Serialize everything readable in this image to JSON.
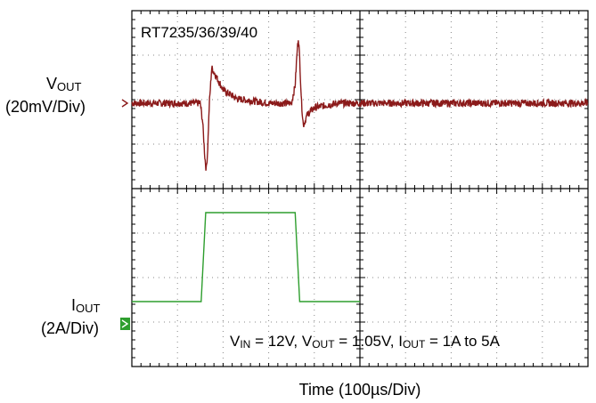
{
  "chart_data": {
    "type": "line",
    "title": "RT7235/36/39/40",
    "xlabel": "Time (100µs/Div)",
    "x_div_us": 100,
    "x_divisions": 10,
    "y_divisions": 8,
    "grid": true,
    "annotation": {
      "prefix": "V",
      "vin_sub": "IN",
      "vin_val": " = 12V, ",
      "vout_prefix": "V",
      "vout_sub": "OUT",
      "vout_val": " = 1.05V, ",
      "iout_prefix": "I",
      "iout_sub": "OUT",
      "iout_val": " = 1A to 5A"
    },
    "series": [
      {
        "name": "VOUT",
        "label_main": "V",
        "label_sub": "OUT",
        "scale_label": "(20mV/Div)",
        "color": "#8b1a1a",
        "unit": "mV",
        "per_div": 20,
        "x_us": [
          0,
          150,
          155,
          160,
          163,
          166,
          170,
          175,
          185,
          200,
          230,
          300,
          350,
          358,
          362,
          365,
          368,
          372,
          376,
          385,
          400,
          450,
          500
        ],
        "y": [
          0,
          0,
          -8,
          -24,
          -30,
          -22,
          0,
          16,
          12,
          6,
          2,
          0,
          0,
          8,
          22,
          30,
          20,
          0,
          -10,
          -5,
          -2,
          0,
          0
        ]
      },
      {
        "name": "IOUT",
        "label_main": "I",
        "label_sub": "OUT",
        "scale_label": "(2A/Div)",
        "color": "#2e9e2e",
        "unit": "A",
        "per_div": 2,
        "x_us": [
          0,
          152,
          162,
          350,
          358,
          368,
          500
        ],
        "y": [
          1,
          1,
          5,
          5,
          5,
          1,
          1
        ]
      }
    ]
  }
}
